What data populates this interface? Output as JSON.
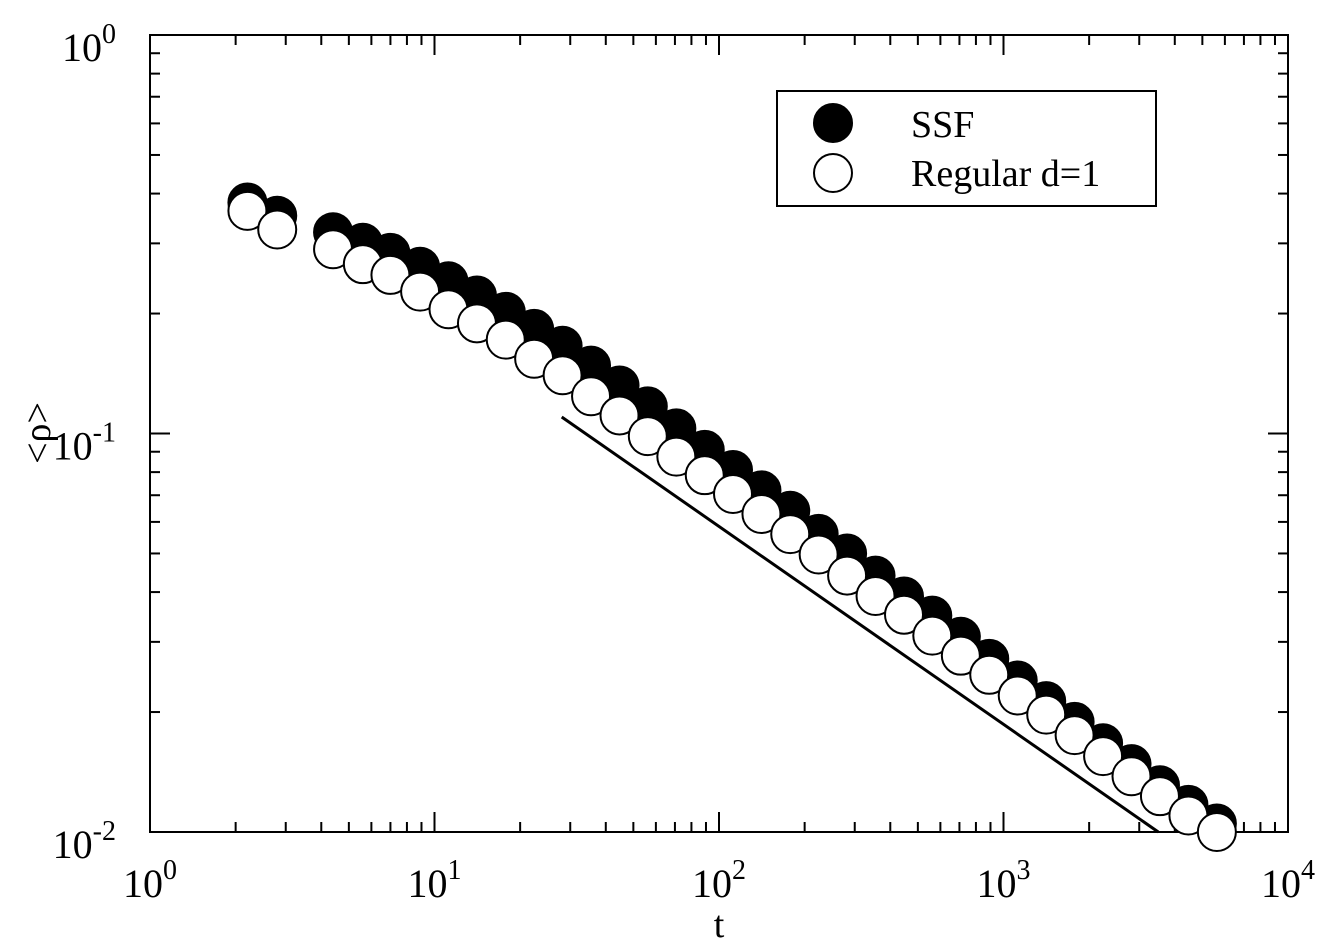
{
  "chart_data": {
    "type": "scatter",
    "xscale": "log",
    "yscale": "log",
    "xlim": [
      1,
      10000
    ],
    "ylim": [
      0.01,
      1
    ],
    "xlabel": "t",
    "ylabel": "<ρ>",
    "grid": false,
    "legend_position": "top-right",
    "x_ticks": [
      {
        "value": 1,
        "base": "10",
        "exp": "0"
      },
      {
        "value": 10,
        "base": "10",
        "exp": "1"
      },
      {
        "value": 100,
        "base": "10",
        "exp": "2"
      },
      {
        "value": 1000,
        "base": "10",
        "exp": "3"
      },
      {
        "value": 10000,
        "base": "10",
        "exp": "4"
      }
    ],
    "y_ticks": [
      {
        "value": 1,
        "base": "10",
        "exp": "0"
      },
      {
        "value": 0.1,
        "base": "10",
        "exp": "-1"
      },
      {
        "value": 0.01,
        "base": "10",
        "exp": "-2"
      }
    ],
    "series": [
      {
        "name": "SSF",
        "marker": "filled-circle",
        "color": "#000000",
        "x": [
          2.2,
          2.8,
          4.4,
          5.6,
          7.0,
          8.9,
          11.2,
          14.1,
          17.8,
          22.4,
          28.2,
          35.5,
          44.7,
          56.2,
          70.8,
          89.1,
          112,
          141,
          178,
          224,
          282,
          355,
          447,
          562,
          708,
          891,
          1122,
          1413,
          1778,
          2239,
          2818,
          3548,
          4467,
          5623
        ],
        "y": [
          0.38,
          0.352,
          0.32,
          0.301,
          0.284,
          0.262,
          0.241,
          0.222,
          0.202,
          0.183,
          0.166,
          0.148,
          0.132,
          0.117,
          0.103,
          0.091,
          0.081,
          0.072,
          0.064,
          0.056,
          0.05,
          0.044,
          0.039,
          0.0349,
          0.0309,
          0.0272,
          0.024,
          0.0213,
          0.0189,
          0.0167,
          0.0148,
          0.0131,
          0.0117,
          0.0105
        ]
      },
      {
        "name": "Regular d=1",
        "marker": "open-circle",
        "color": "#000000",
        "x": [
          2.2,
          2.8,
          4.4,
          5.6,
          7.0,
          8.9,
          11.2,
          14.1,
          17.8,
          22.4,
          28.2,
          35.5,
          44.7,
          56.2,
          70.8,
          89.1,
          112,
          141,
          178,
          224,
          282,
          355,
          447,
          562,
          708,
          891,
          1122,
          1413,
          1778,
          2239,
          2818,
          3548,
          4467,
          5623
        ],
        "y": [
          0.362,
          0.325,
          0.29,
          0.266,
          0.25,
          0.227,
          0.205,
          0.189,
          0.172,
          0.154,
          0.14,
          0.124,
          0.111,
          0.0985,
          0.0875,
          0.0786,
          0.0705,
          0.0628,
          0.0559,
          0.0497,
          0.044,
          0.0391,
          0.0351,
          0.0311,
          0.0277,
          0.0248,
          0.022,
          0.0197,
          0.0175,
          0.0155,
          0.0138,
          0.0123,
          0.011,
          0.01
        ]
      }
    ],
    "reference_line": {
      "x": [
        28,
        3500
      ],
      "y": [
        0.11,
        0.01
      ]
    }
  }
}
